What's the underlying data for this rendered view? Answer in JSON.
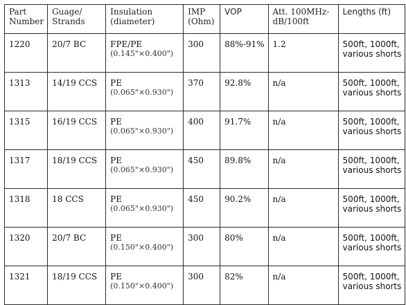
{
  "headers": [
    [
      "Part",
      "Number"
    ],
    [
      "Guage/",
      "Strands"
    ],
    [
      "Insulation",
      "(diameter)"
    ],
    [
      "IMP",
      "(Ohm)"
    ],
    [
      "VOP"
    ],
    [
      "Att. 100MHz-",
      "dB/100ft"
    ],
    [
      "Lengths (ft)"
    ]
  ],
  "rows": [
    {
      "part": "1220",
      "gauge": "20/7 BC",
      "ins": "FPE/PE",
      "dia": "(0.145\"×0.400\")",
      "imp": "300",
      "vop": "88%-91%",
      "att": "1.2",
      "len1": "500ft, 1000ft,",
      "len2": "various shorts"
    },
    {
      "part": "1313",
      "gauge": "14/19 CCS",
      "ins": "PE",
      "dia": "(0.065\"×0.930\")",
      "imp": "370",
      "vop": "92.8%",
      "att": "n/a",
      "len1": "500ft, 1000ft,",
      "len2": "various shorts"
    },
    {
      "part": "1315",
      "gauge": "16/19 CCS",
      "ins": "PE",
      "dia": "(0.065\"×0.930\")",
      "imp": "400",
      "vop": "91.7%",
      "att": "n/a",
      "len1": "500ft, 1000ft,",
      "len2": "various shorts"
    },
    {
      "part": "1317",
      "gauge": "18/19 CCS",
      "ins": "PE",
      "dia": "(0.065\"×0.930\")",
      "imp": "450",
      "vop": "89.8%",
      "att": "n/a",
      "len1": "500ft, 1000ft,",
      "len2": "various shorts"
    },
    {
      "part": "1318",
      "gauge": "18 CCS",
      "ins": "PE",
      "dia": "(0.065\"×0.930\")",
      "imp": "450",
      "vop": "90.2%",
      "att": "n/a",
      "len1": "500ft, 1000ft,",
      "len2": "various shorts"
    },
    {
      "part": "1320",
      "gauge": "20/7 BC",
      "ins": "PE",
      "dia": "(0.150\"×0.400\")",
      "imp": "300",
      "vop": "80%",
      "att": "n/a",
      "len1": "500ft, 1000ft,",
      "len2": "various shorts"
    },
    {
      "part": "1321",
      "gauge": "18/19 CCS",
      "ins": "PE",
      "dia": "(0.150\"×0.400\")",
      "imp": "300",
      "vop": "82%",
      "att": "n/a",
      "len1": "500ft, 1000ft,",
      "len2": "various shorts"
    }
  ]
}
